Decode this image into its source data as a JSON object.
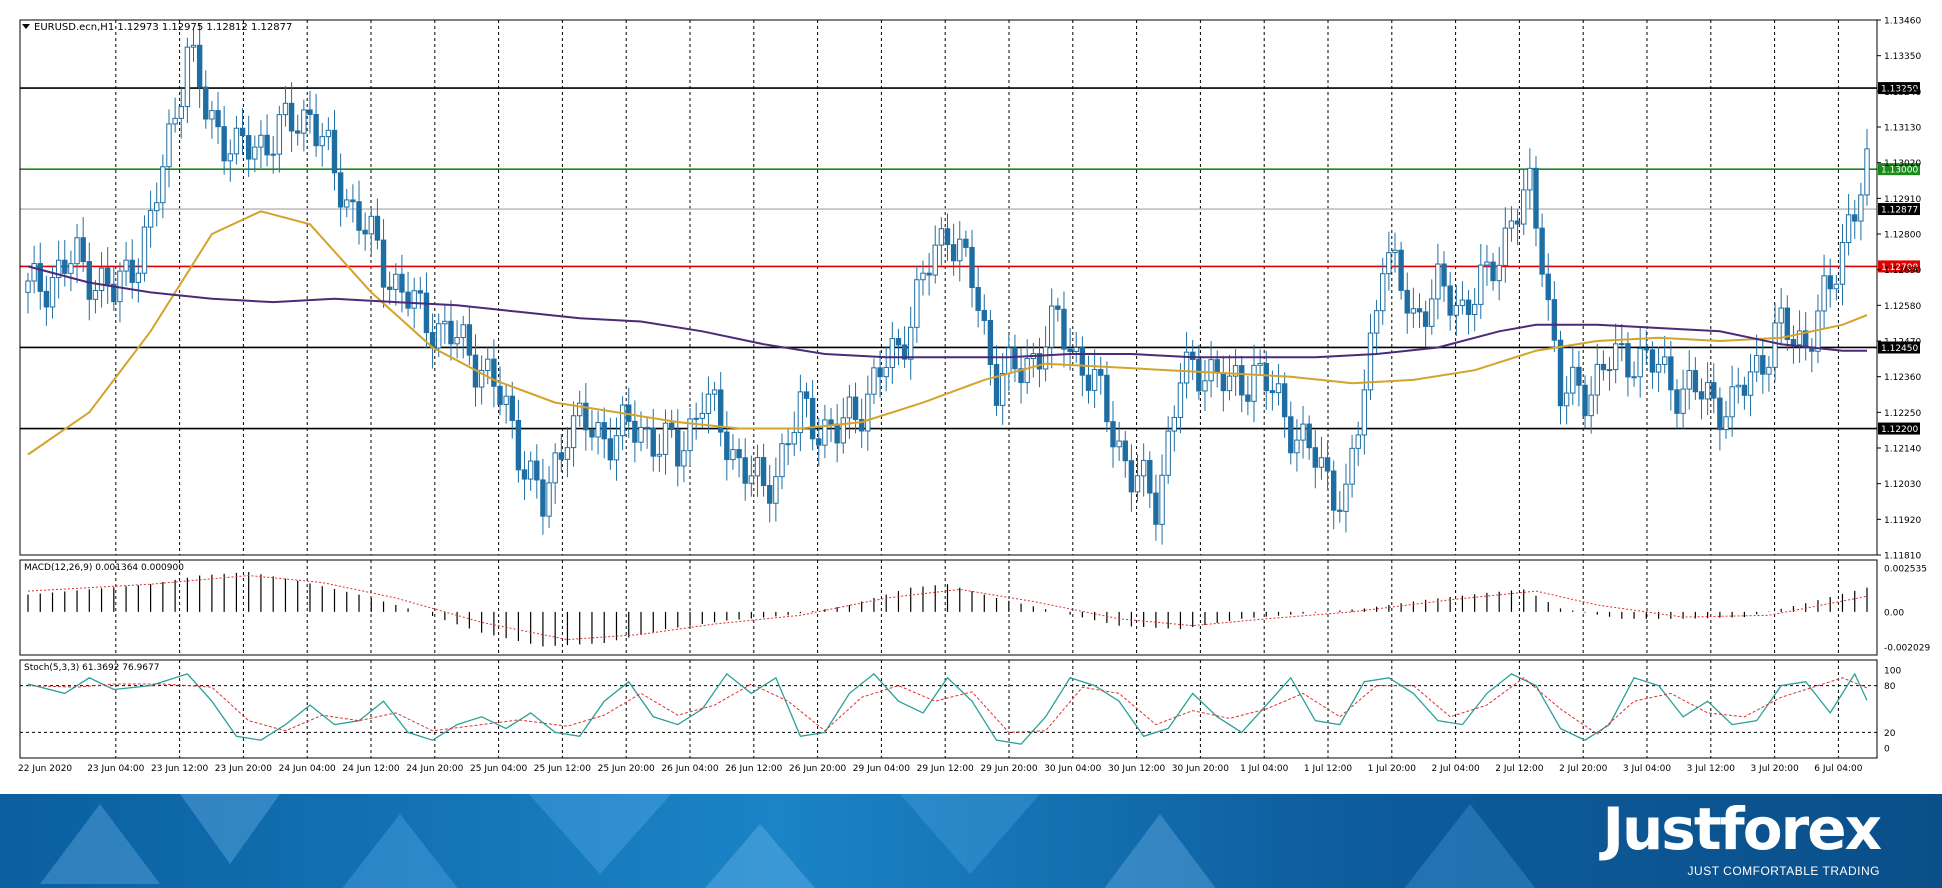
{
  "chart_data": {
    "type": "candlestick",
    "symbol_header": "EURUSD.ecn,H1  1.12973 1.12975 1.12812 1.12877",
    "price_scale": {
      "min": 1.1181,
      "max": 1.1346,
      "ticks": [
        "1.13460",
        "1.13350",
        "1.13240",
        "1.13130",
        "1.13020",
        "1.12910",
        "1.12800",
        "1.12690",
        "1.12580",
        "1.12470",
        "1.12360",
        "1.12250",
        "1.12140",
        "1.12030",
        "1.11920",
        "1.11810"
      ]
    },
    "horizontal_levels": [
      {
        "price": 1.1325,
        "label": "1.13250",
        "color": "#000000"
      },
      {
        "price": 1.13,
        "label": "1.13000",
        "color": "#1a8a1a"
      },
      {
        "price": 1.12877,
        "label": "1.12877",
        "color": "#c0c0c0"
      },
      {
        "price": 1.127,
        "label": "1.12700",
        "color": "#e00000"
      },
      {
        "price": 1.1245,
        "label": "1.12450",
        "color": "#000000"
      },
      {
        "price": 1.122,
        "label": "1.12200",
        "color": "#000000"
      }
    ],
    "time_labels": [
      "22 Jun 2020",
      "23 Jun 04:00",
      "23 Jun 12:00",
      "23 Jun 20:00",
      "24 Jun 04:00",
      "24 Jun 12:00",
      "24 Jun 20:00",
      "25 Jun 04:00",
      "25 Jun 12:00",
      "25 Jun 20:00",
      "26 Jun 04:00",
      "26 Jun 12:00",
      "26 Jun 20:00",
      "29 Jun 04:00",
      "29 Jun 12:00",
      "29 Jun 20:00",
      "30 Jun 04:00",
      "30 Jun 12:00",
      "30 Jun 20:00",
      "1 Jul 04:00",
      "1 Jul 12:00",
      "1 Jul 20:00",
      "2 Jul 04:00",
      "2 Jul 12:00",
      "2 Jul 20:00",
      "3 Jul 04:00",
      "3 Jul 12:00",
      "3 Jul 20:00",
      "6 Jul 04:00"
    ],
    "close_path": [
      [
        0,
        1.1262
      ],
      [
        8,
        1.1272
      ],
      [
        14,
        1.1261
      ],
      [
        20,
        1.1282
      ],
      [
        26,
        1.1337
      ],
      [
        29,
        1.1318
      ],
      [
        34,
        1.1305
      ],
      [
        40,
        1.131
      ],
      [
        46,
        1.1318
      ],
      [
        50,
        1.1298
      ],
      [
        54,
        1.1285
      ],
      [
        58,
        1.127
      ],
      [
        64,
        1.1255
      ],
      [
        68,
        1.125
      ],
      [
        74,
        1.124
      ],
      [
        78,
        1.1225
      ],
      [
        84,
        1.1195
      ],
      [
        88,
        1.1222
      ],
      [
        94,
        1.1218
      ],
      [
        100,
        1.122
      ],
      [
        106,
        1.1212
      ],
      [
        110,
        1.123
      ],
      [
        116,
        1.121
      ],
      [
        120,
        1.12
      ],
      [
        126,
        1.1225
      ],
      [
        132,
        1.1218
      ],
      [
        136,
        1.1228
      ],
      [
        142,
        1.1245
      ],
      [
        146,
        1.1265
      ],
      [
        150,
        1.1283
      ],
      [
        154,
        1.1265
      ],
      [
        158,
        1.1235
      ],
      [
        162,
        1.1238
      ],
      [
        168,
        1.1252
      ],
      [
        172,
        1.124
      ],
      [
        176,
        1.1225
      ],
      [
        180,
        1.1205
      ],
      [
        184,
        1.1198
      ],
      [
        188,
        1.1235
      ],
      [
        192,
        1.124
      ],
      [
        196,
        1.1232
      ],
      [
        200,
        1.1238
      ],
      [
        204,
        1.1228
      ],
      [
        208,
        1.1215
      ],
      [
        212,
        1.1205
      ],
      [
        215,
        1.1197
      ],
      [
        218,
        1.1232
      ],
      [
        221,
        1.1275
      ],
      [
        226,
        1.1255
      ],
      [
        230,
        1.1262
      ],
      [
        234,
        1.1258
      ],
      [
        238,
        1.1265
      ],
      [
        242,
        1.1285
      ],
      [
        245,
        1.1292
      ],
      [
        247,
        1.1275
      ],
      [
        250,
        1.123
      ],
      [
        254,
        1.1232
      ],
      [
        258,
        1.124
      ],
      [
        262,
        1.1243
      ],
      [
        266,
        1.1238
      ],
      [
        270,
        1.1232
      ],
      [
        274,
        1.123
      ],
      [
        278,
        1.1226
      ],
      [
        282,
        1.124
      ],
      [
        286,
        1.125
      ],
      [
        290,
        1.1247
      ],
      [
        294,
        1.1262
      ],
      [
        297,
        1.1285
      ],
      [
        300,
        1.1298
      ]
    ],
    "ma_yellow": [
      [
        0,
        1.1212
      ],
      [
        10,
        1.1225
      ],
      [
        20,
        1.125
      ],
      [
        30,
        1.128
      ],
      [
        38,
        1.1287
      ],
      [
        46,
        1.1283
      ],
      [
        56,
        1.1262
      ],
      [
        66,
        1.1245
      ],
      [
        76,
        1.1235
      ],
      [
        86,
        1.1228
      ],
      [
        96,
        1.1225
      ],
      [
        106,
        1.1222
      ],
      [
        116,
        1.122
      ],
      [
        126,
        1.122
      ],
      [
        136,
        1.1222
      ],
      [
        146,
        1.1228
      ],
      [
        156,
        1.1235
      ],
      [
        166,
        1.124
      ],
      [
        176,
        1.1239
      ],
      [
        186,
        1.1238
      ],
      [
        196,
        1.1237
      ],
      [
        206,
        1.1236
      ],
      [
        216,
        1.1234
      ],
      [
        226,
        1.1235
      ],
      [
        236,
        1.1238
      ],
      [
        246,
        1.1244
      ],
      [
        256,
        1.1247
      ],
      [
        266,
        1.1248
      ],
      [
        276,
        1.1247
      ],
      [
        286,
        1.1248
      ],
      [
        296,
        1.1252
      ],
      [
        300,
        1.1255
      ]
    ],
    "ma_purple": [
      [
        0,
        1.127
      ],
      [
        10,
        1.1265
      ],
      [
        20,
        1.1262
      ],
      [
        30,
        1.126
      ],
      [
        40,
        1.1259
      ],
      [
        50,
        1.126
      ],
      [
        60,
        1.1259
      ],
      [
        70,
        1.1258
      ],
      [
        80,
        1.1256
      ],
      [
        90,
        1.1254
      ],
      [
        100,
        1.1253
      ],
      [
        110,
        1.125
      ],
      [
        120,
        1.1246
      ],
      [
        130,
        1.1243
      ],
      [
        140,
        1.1242
      ],
      [
        150,
        1.1242
      ],
      [
        160,
        1.1242
      ],
      [
        170,
        1.1243
      ],
      [
        180,
        1.1243
      ],
      [
        190,
        1.1242
      ],
      [
        200,
        1.1242
      ],
      [
        210,
        1.1242
      ],
      [
        220,
        1.1243
      ],
      [
        230,
        1.1245
      ],
      [
        240,
        1.125
      ],
      [
        246,
        1.1252
      ],
      [
        256,
        1.1252
      ],
      [
        266,
        1.1251
      ],
      [
        276,
        1.125
      ],
      [
        286,
        1.1246
      ],
      [
        296,
        1.1244
      ],
      [
        300,
        1.1244
      ]
    ],
    "macd": {
      "label": "MACD(12,26,9) 0.001364 0.000900",
      "ticks": [
        "0.002535",
        "0.00",
        "-0.002029"
      ],
      "min": -0.002029,
      "max": 0.002535,
      "hist_path": [
        [
          0,
          0.001
        ],
        [
          20,
          0.0016
        ],
        [
          28,
          0.0021
        ],
        [
          36,
          0.0023
        ],
        [
          44,
          0.0018
        ],
        [
          54,
          0.001
        ],
        [
          64,
          0.0
        ],
        [
          74,
          -0.0012
        ],
        [
          84,
          -0.002
        ],
        [
          94,
          -0.0018
        ],
        [
          104,
          -0.001
        ],
        [
          114,
          -0.0005
        ],
        [
          124,
          -0.0002
        ],
        [
          134,
          0.0004
        ],
        [
          144,
          0.0014
        ],
        [
          150,
          0.0016
        ],
        [
          158,
          0.0008
        ],
        [
          168,
          0.0
        ],
        [
          178,
          -0.0008
        ],
        [
          188,
          -0.001
        ],
        [
          198,
          -0.0004
        ],
        [
          208,
          -0.0001
        ],
        [
          218,
          0.0002
        ],
        [
          228,
          0.0007
        ],
        [
          238,
          0.0011
        ],
        [
          244,
          0.0013
        ],
        [
          250,
          0.0002
        ],
        [
          260,
          -0.0004
        ],
        [
          270,
          -0.0004
        ],
        [
          280,
          -0.0003
        ],
        [
          290,
          0.0005
        ],
        [
          300,
          0.0014
        ]
      ],
      "signal_path": [
        [
          0,
          0.0012
        ],
        [
          20,
          0.0016
        ],
        [
          36,
          0.0021
        ],
        [
          48,
          0.0017
        ],
        [
          60,
          0.0008
        ],
        [
          74,
          -0.0006
        ],
        [
          88,
          -0.0016
        ],
        [
          100,
          -0.0013
        ],
        [
          112,
          -0.0007
        ],
        [
          126,
          -0.0002
        ],
        [
          140,
          0.0008
        ],
        [
          152,
          0.0013
        ],
        [
          164,
          0.0006
        ],
        [
          178,
          -0.0004
        ],
        [
          190,
          -0.0008
        ],
        [
          202,
          -0.0004
        ],
        [
          216,
          0.0
        ],
        [
          232,
          0.0007
        ],
        [
          246,
          0.0012
        ],
        [
          256,
          0.0004
        ],
        [
          270,
          -0.0003
        ],
        [
          284,
          -0.0002
        ],
        [
          300,
          0.0009
        ]
      ]
    },
    "stoch": {
      "label": "Stoch(5,3,3) 61.3692 76.9677",
      "ticks": [
        "100",
        "80",
        "20",
        "0"
      ],
      "k_path": [
        [
          0,
          82
        ],
        [
          6,
          70
        ],
        [
          10,
          90
        ],
        [
          14,
          75
        ],
        [
          20,
          80
        ],
        [
          26,
          95
        ],
        [
          30,
          60
        ],
        [
          34,
          15
        ],
        [
          38,
          10
        ],
        [
          42,
          30
        ],
        [
          46,
          55
        ],
        [
          50,
          30
        ],
        [
          54,
          35
        ],
        [
          58,
          60
        ],
        [
          62,
          20
        ],
        [
          66,
          10
        ],
        [
          70,
          30
        ],
        [
          74,
          40
        ],
        [
          78,
          25
        ],
        [
          82,
          45
        ],
        [
          86,
          20
        ],
        [
          90,
          15
        ],
        [
          94,
          60
        ],
        [
          98,
          85
        ],
        [
          102,
          40
        ],
        [
          106,
          30
        ],
        [
          110,
          50
        ],
        [
          114,
          95
        ],
        [
          118,
          70
        ],
        [
          122,
          90
        ],
        [
          126,
          15
        ],
        [
          130,
          20
        ],
        [
          134,
          70
        ],
        [
          138,
          95
        ],
        [
          142,
          60
        ],
        [
          146,
          45
        ],
        [
          150,
          90
        ],
        [
          154,
          60
        ],
        [
          158,
          10
        ],
        [
          162,
          5
        ],
        [
          166,
          40
        ],
        [
          170,
          90
        ],
        [
          174,
          80
        ],
        [
          178,
          60
        ],
        [
          182,
          15
        ],
        [
          186,
          25
        ],
        [
          190,
          70
        ],
        [
          194,
          40
        ],
        [
          198,
          20
        ],
        [
          202,
          55
        ],
        [
          206,
          90
        ],
        [
          210,
          35
        ],
        [
          214,
          30
        ],
        [
          218,
          85
        ],
        [
          222,
          90
        ],
        [
          226,
          70
        ],
        [
          230,
          35
        ],
        [
          234,
          30
        ],
        [
          238,
          70
        ],
        [
          242,
          95
        ],
        [
          246,
          80
        ],
        [
          250,
          25
        ],
        [
          254,
          10
        ],
        [
          258,
          30
        ],
        [
          262,
          90
        ],
        [
          266,
          80
        ],
        [
          270,
          40
        ],
        [
          274,
          60
        ],
        [
          278,
          30
        ],
        [
          282,
          35
        ],
        [
          286,
          80
        ],
        [
          290,
          85
        ],
        [
          294,
          45
        ],
        [
          298,
          95
        ],
        [
          300,
          61
        ]
      ],
      "d_path": [
        [
          0,
          80
        ],
        [
          8,
          78
        ],
        [
          14,
          82
        ],
        [
          22,
          82
        ],
        [
          30,
          78
        ],
        [
          36,
          35
        ],
        [
          42,
          22
        ],
        [
          48,
          42
        ],
        [
          54,
          35
        ],
        [
          60,
          45
        ],
        [
          66,
          22
        ],
        [
          72,
          28
        ],
        [
          80,
          36
        ],
        [
          88,
          28
        ],
        [
          94,
          42
        ],
        [
          100,
          70
        ],
        [
          106,
          42
        ],
        [
          112,
          55
        ],
        [
          118,
          82
        ],
        [
          124,
          60
        ],
        [
          130,
          22
        ],
        [
          136,
          65
        ],
        [
          142,
          80
        ],
        [
          148,
          60
        ],
        [
          154,
          72
        ],
        [
          160,
          20
        ],
        [
          166,
          22
        ],
        [
          172,
          78
        ],
        [
          178,
          70
        ],
        [
          184,
          30
        ],
        [
          190,
          48
        ],
        [
          196,
          38
        ],
        [
          202,
          50
        ],
        [
          208,
          70
        ],
        [
          214,
          40
        ],
        [
          220,
          80
        ],
        [
          226,
          80
        ],
        [
          232,
          40
        ],
        [
          238,
          55
        ],
        [
          244,
          90
        ],
        [
          250,
          50
        ],
        [
          256,
          18
        ],
        [
          262,
          60
        ],
        [
          268,
          70
        ],
        [
          274,
          45
        ],
        [
          280,
          40
        ],
        [
          286,
          65
        ],
        [
          292,
          80
        ],
        [
          296,
          90
        ],
        [
          300,
          77
        ]
      ]
    }
  }
}
